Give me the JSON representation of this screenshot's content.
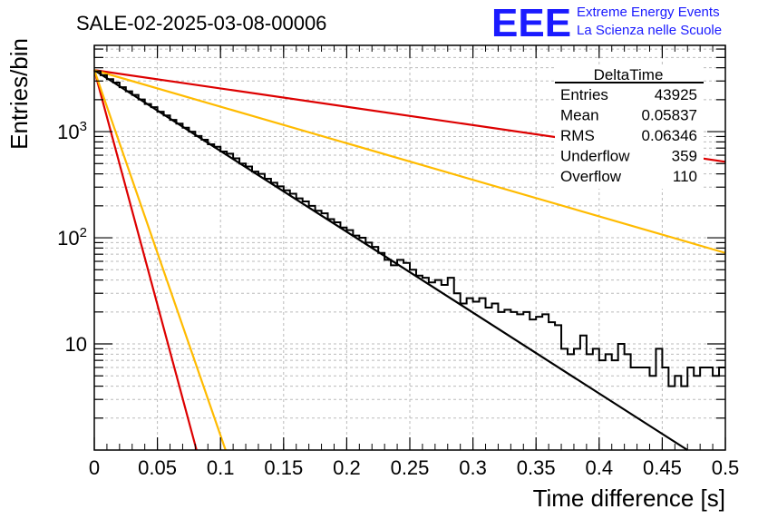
{
  "header": {
    "title": "SALE-02-2025-03-08-00006",
    "logo": "EEE",
    "org_line1": "Extreme Energy Events",
    "org_line2": "La Scienza nelle Scuole"
  },
  "stats_box": {
    "name": "DeltaTime",
    "rows": [
      {
        "label": "Entries",
        "value": "43925"
      },
      {
        "label": "Mean",
        "value": "0.05837"
      },
      {
        "label": "RMS",
        "value": "0.06346"
      },
      {
        "label": "Underflow",
        "value": "359"
      },
      {
        "label": "Overflow",
        "value": "110"
      }
    ]
  },
  "chart_data": {
    "type": "histogram",
    "xlabel": "Time difference [s]",
    "ylabel": "Entries/bin",
    "xlim": [
      0,
      0.5
    ],
    "ylim": [
      1,
      6500
    ],
    "yscale": "log",
    "grid": true,
    "x_ticks": [
      "0",
      "0.05",
      "0.1",
      "0.15",
      "0.2",
      "0.25",
      "0.3",
      "0.35",
      "0.4",
      "0.45",
      "0.5"
    ],
    "y_tick_labels": [
      {
        "value": 10,
        "base": "10",
        "exp": ""
      },
      {
        "value": 100,
        "base": "10",
        "exp": "2"
      },
      {
        "value": 1000,
        "base": "10",
        "exp": "3"
      }
    ],
    "bin_width": 0.0025,
    "bins": [
      {
        "x": 0.0,
        "y": 3700
      },
      {
        "x": 0.005,
        "y": 3400
      },
      {
        "x": 0.01,
        "y": 3120
      },
      {
        "x": 0.015,
        "y": 2900
      },
      {
        "x": 0.02,
        "y": 2620
      },
      {
        "x": 0.025,
        "y": 2400
      },
      {
        "x": 0.03,
        "y": 2220
      },
      {
        "x": 0.035,
        "y": 2010
      },
      {
        "x": 0.04,
        "y": 1820
      },
      {
        "x": 0.045,
        "y": 1700
      },
      {
        "x": 0.05,
        "y": 1540
      },
      {
        "x": 0.055,
        "y": 1420
      },
      {
        "x": 0.06,
        "y": 1290
      },
      {
        "x": 0.065,
        "y": 1190
      },
      {
        "x": 0.07,
        "y": 1090
      },
      {
        "x": 0.075,
        "y": 1000
      },
      {
        "x": 0.08,
        "y": 910
      },
      {
        "x": 0.085,
        "y": 840
      },
      {
        "x": 0.09,
        "y": 760
      },
      {
        "x": 0.095,
        "y": 720
      },
      {
        "x": 0.1,
        "y": 650
      },
      {
        "x": 0.105,
        "y": 620
      },
      {
        "x": 0.11,
        "y": 560
      },
      {
        "x": 0.115,
        "y": 500
      },
      {
        "x": 0.12,
        "y": 470
      },
      {
        "x": 0.125,
        "y": 420
      },
      {
        "x": 0.13,
        "y": 400
      },
      {
        "x": 0.135,
        "y": 360
      },
      {
        "x": 0.14,
        "y": 330
      },
      {
        "x": 0.145,
        "y": 305
      },
      {
        "x": 0.15,
        "y": 280
      },
      {
        "x": 0.155,
        "y": 260
      },
      {
        "x": 0.16,
        "y": 235
      },
      {
        "x": 0.165,
        "y": 220
      },
      {
        "x": 0.17,
        "y": 200
      },
      {
        "x": 0.175,
        "y": 180
      },
      {
        "x": 0.18,
        "y": 170
      },
      {
        "x": 0.185,
        "y": 150
      },
      {
        "x": 0.19,
        "y": 140
      },
      {
        "x": 0.195,
        "y": 125
      },
      {
        "x": 0.2,
        "y": 118
      },
      {
        "x": 0.205,
        "y": 105
      },
      {
        "x": 0.21,
        "y": 100
      },
      {
        "x": 0.215,
        "y": 90
      },
      {
        "x": 0.22,
        "y": 82
      },
      {
        "x": 0.225,
        "y": 72
      },
      {
        "x": 0.23,
        "y": 62
      },
      {
        "x": 0.235,
        "y": 55
      },
      {
        "x": 0.24,
        "y": 62
      },
      {
        "x": 0.245,
        "y": 58
      },
      {
        "x": 0.25,
        "y": 50
      },
      {
        "x": 0.255,
        "y": 44
      },
      {
        "x": 0.26,
        "y": 42
      },
      {
        "x": 0.265,
        "y": 38
      },
      {
        "x": 0.27,
        "y": 40
      },
      {
        "x": 0.275,
        "y": 36
      },
      {
        "x": 0.28,
        "y": 42
      },
      {
        "x": 0.285,
        "y": 30
      },
      {
        "x": 0.29,
        "y": 24
      },
      {
        "x": 0.295,
        "y": 27
      },
      {
        "x": 0.3,
        "y": 25
      },
      {
        "x": 0.305,
        "y": 27
      },
      {
        "x": 0.31,
        "y": 22
      },
      {
        "x": 0.315,
        "y": 24
      },
      {
        "x": 0.32,
        "y": 20
      },
      {
        "x": 0.325,
        "y": 21
      },
      {
        "x": 0.33,
        "y": 20
      },
      {
        "x": 0.335,
        "y": 19
      },
      {
        "x": 0.34,
        "y": 20
      },
      {
        "x": 0.345,
        "y": 17
      },
      {
        "x": 0.35,
        "y": 18
      },
      {
        "x": 0.355,
        "y": 19
      },
      {
        "x": 0.36,
        "y": 16
      },
      {
        "x": 0.365,
        "y": 15
      },
      {
        "x": 0.37,
        "y": 9
      },
      {
        "x": 0.375,
        "y": 8
      },
      {
        "x": 0.38,
        "y": 9
      },
      {
        "x": 0.385,
        "y": 12
      },
      {
        "x": 0.39,
        "y": 8
      },
      {
        "x": 0.395,
        "y": 9
      },
      {
        "x": 0.4,
        "y": 7
      },
      {
        "x": 0.405,
        "y": 8
      },
      {
        "x": 0.41,
        "y": 7
      },
      {
        "x": 0.415,
        "y": 10
      },
      {
        "x": 0.42,
        "y": 8
      },
      {
        "x": 0.425,
        "y": 6
      },
      {
        "x": 0.43,
        "y": 6
      },
      {
        "x": 0.435,
        "y": 6
      },
      {
        "x": 0.44,
        "y": 5
      },
      {
        "x": 0.445,
        "y": 9
      },
      {
        "x": 0.45,
        "y": 6
      },
      {
        "x": 0.455,
        "y": 4
      },
      {
        "x": 0.46,
        "y": 5
      },
      {
        "x": 0.465,
        "y": 4
      },
      {
        "x": 0.47,
        "y": 6
      },
      {
        "x": 0.475,
        "y": 5
      },
      {
        "x": 0.48,
        "y": 6
      },
      {
        "x": 0.485,
        "y": 6
      },
      {
        "x": 0.49,
        "y": 5
      },
      {
        "x": 0.495,
        "y": 6
      }
    ],
    "lines": [
      {
        "color": "#000000",
        "points": [
          [
            0.0,
            3800
          ],
          [
            0.47,
            1.0
          ]
        ]
      },
      {
        "color": "#dd0000",
        "points": [
          [
            0.0,
            3800
          ],
          [
            0.5,
            520
          ]
        ]
      },
      {
        "color": "#dd0000",
        "points": [
          [
            0.0,
            3800
          ],
          [
            0.081,
            1.0
          ]
        ]
      },
      {
        "color": "#ffbb00",
        "points": [
          [
            0.0,
            3800
          ],
          [
            0.5,
            72
          ]
        ]
      },
      {
        "color": "#ffbb00",
        "points": [
          [
            0.0,
            3800
          ],
          [
            0.104,
            1.0
          ]
        ]
      }
    ]
  }
}
